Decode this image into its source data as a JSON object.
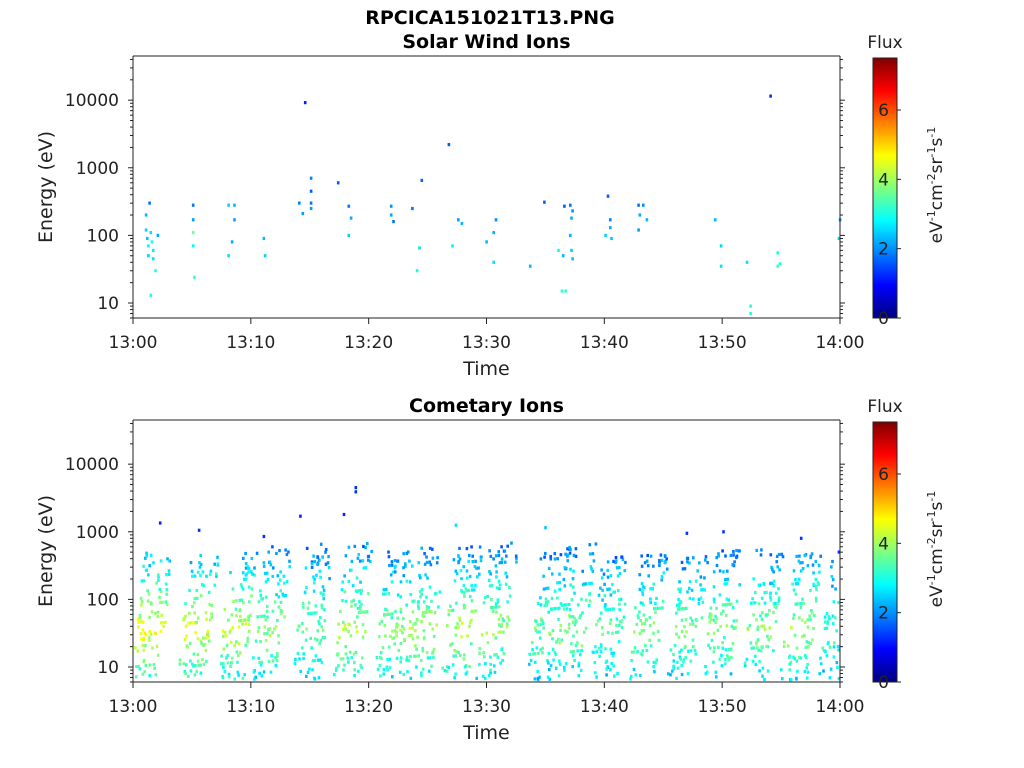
{
  "figure": {
    "title": "RPCICA151021T13.PNG"
  },
  "chart_data": [
    {
      "type": "heatmap",
      "title": "Solar Wind Ions",
      "xlabel": "Time",
      "ylabel": "Energy (eV)",
      "xlim": [
        "13:00",
        "14:00"
      ],
      "x_ticks": [
        "13:00",
        "13:10",
        "13:20",
        "13:30",
        "13:40",
        "13:50",
        "14:00"
      ],
      "ylim": [
        6,
        45000
      ],
      "y_scale": "log",
      "y_ticks": [
        {
          "value": 10,
          "label": "10"
        },
        {
          "value": 100,
          "label": "100"
        },
        {
          "value": 1000,
          "label": "1000"
        },
        {
          "value": 10000,
          "label": "10000"
        }
      ],
      "colorbar": {
        "title": "Flux",
        "units": "eV-1cm-2sr-1s-1",
        "range": [
          0,
          7.5
        ],
        "ticks": [
          0,
          2,
          4,
          6
        ],
        "colormap": "jet"
      },
      "cells": [
        {
          "t": 1.0,
          "e": 200,
          "v": 2.3
        },
        {
          "t": 1.0,
          "e": 120,
          "v": 2.5
        },
        {
          "t": 1.1,
          "e": 90,
          "v": 2.4
        },
        {
          "t": 1.2,
          "e": 70,
          "v": 2.8
        },
        {
          "t": 1.2,
          "e": 50,
          "v": 2.5
        },
        {
          "t": 1.3,
          "e": 300,
          "v": 1.8
        },
        {
          "t": 1.4,
          "e": 110,
          "v": 2.6
        },
        {
          "t": 1.5,
          "e": 80,
          "v": 2.9
        },
        {
          "t": 1.6,
          "e": 60,
          "v": 2.7
        },
        {
          "t": 1.6,
          "e": 45,
          "v": 2.6
        },
        {
          "t": 1.4,
          "e": 13,
          "v": 3.0
        },
        {
          "t": 1.8,
          "e": 30,
          "v": 3.1
        },
        {
          "t": 2.0,
          "e": 100,
          "v": 2.2
        },
        {
          "t": 5.0,
          "e": 280,
          "v": 1.8
        },
        {
          "t": 5.0,
          "e": 170,
          "v": 2.1
        },
        {
          "t": 5.0,
          "e": 110,
          "v": 3.6
        },
        {
          "t": 5.0,
          "e": 70,
          "v": 2.8
        },
        {
          "t": 5.1,
          "e": 24,
          "v": 3.2
        },
        {
          "t": 8.0,
          "e": 280,
          "v": 2.5
        },
        {
          "t": 8.5,
          "e": 280,
          "v": 2.3
        },
        {
          "t": 8.5,
          "e": 170,
          "v": 2.1
        },
        {
          "t": 8.3,
          "e": 80,
          "v": 2.2
        },
        {
          "t": 8.0,
          "e": 50,
          "v": 2.6
        },
        {
          "t": 11.0,
          "e": 90,
          "v": 2.3
        },
        {
          "t": 11.1,
          "e": 50,
          "v": 2.5
        },
        {
          "t": 14.5,
          "e": 9200,
          "v": 1.2
        },
        {
          "t": 14.0,
          "e": 300,
          "v": 1.9
        },
        {
          "t": 14.3,
          "e": 210,
          "v": 2.1
        },
        {
          "t": 15.0,
          "e": 700,
          "v": 1.9
        },
        {
          "t": 15.0,
          "e": 450,
          "v": 1.6
        },
        {
          "t": 15.0,
          "e": 300,
          "v": 1.8
        },
        {
          "t": 15.0,
          "e": 250,
          "v": 2.1
        },
        {
          "t": 17.3,
          "e": 600,
          "v": 1.6
        },
        {
          "t": 18.2,
          "e": 270,
          "v": 1.8
        },
        {
          "t": 18.4,
          "e": 180,
          "v": 2.2
        },
        {
          "t": 18.2,
          "e": 100,
          "v": 2.5
        },
        {
          "t": 21.8,
          "e": 270,
          "v": 2.0
        },
        {
          "t": 21.8,
          "e": 200,
          "v": 2.2
        },
        {
          "t": 22.0,
          "e": 160,
          "v": 1.8
        },
        {
          "t": 23.6,
          "e": 250,
          "v": 1.8
        },
        {
          "t": 24.4,
          "e": 650,
          "v": 1.7
        },
        {
          "t": 24.2,
          "e": 65,
          "v": 2.6
        },
        {
          "t": 24.0,
          "e": 30,
          "v": 2.9
        },
        {
          "t": 26.7,
          "e": 2200,
          "v": 1.6
        },
        {
          "t": 27.5,
          "e": 170,
          "v": 2.1
        },
        {
          "t": 27.8,
          "e": 150,
          "v": 2.3
        },
        {
          "t": 27.0,
          "e": 70,
          "v": 2.7
        },
        {
          "t": 29.9,
          "e": 80,
          "v": 2.3
        },
        {
          "t": 30.7,
          "e": 170,
          "v": 2.0
        },
        {
          "t": 30.5,
          "e": 110,
          "v": 2.3
        },
        {
          "t": 30.5,
          "e": 40,
          "v": 2.6
        },
        {
          "t": 33.6,
          "e": 35,
          "v": 2.3
        },
        {
          "t": 34.8,
          "e": 310,
          "v": 1.6
        },
        {
          "t": 36.0,
          "e": 60,
          "v": 2.9
        },
        {
          "t": 36.5,
          "e": 270,
          "v": 1.6
        },
        {
          "t": 36.4,
          "e": 50,
          "v": 2.3
        },
        {
          "t": 36.3,
          "e": 15,
          "v": 3.2
        },
        {
          "t": 36.6,
          "e": 15,
          "v": 3.2
        },
        {
          "t": 37.0,
          "e": 280,
          "v": 1.8
        },
        {
          "t": 37.2,
          "e": 230,
          "v": 2.0
        },
        {
          "t": 37.1,
          "e": 180,
          "v": 2.2
        },
        {
          "t": 37.0,
          "e": 100,
          "v": 2.3
        },
        {
          "t": 37.1,
          "e": 60,
          "v": 2.5
        },
        {
          "t": 37.2,
          "e": 45,
          "v": 2.4
        },
        {
          "t": 40.2,
          "e": 380,
          "v": 1.6
        },
        {
          "t": 40.4,
          "e": 170,
          "v": 1.9
        },
        {
          "t": 40.4,
          "e": 130,
          "v": 2.2
        },
        {
          "t": 40.0,
          "e": 100,
          "v": 2.5
        },
        {
          "t": 40.5,
          "e": 90,
          "v": 2.4
        },
        {
          "t": 42.8,
          "e": 280,
          "v": 1.8
        },
        {
          "t": 43.2,
          "e": 280,
          "v": 2.0
        },
        {
          "t": 42.9,
          "e": 200,
          "v": 2.2
        },
        {
          "t": 43.5,
          "e": 170,
          "v": 2.3
        },
        {
          "t": 42.8,
          "e": 120,
          "v": 2.1
        },
        {
          "t": 49.3,
          "e": 170,
          "v": 2.3
        },
        {
          "t": 49.8,
          "e": 70,
          "v": 2.5
        },
        {
          "t": 49.8,
          "e": 35,
          "v": 2.6
        },
        {
          "t": 52.0,
          "e": 40,
          "v": 2.6
        },
        {
          "t": 52.3,
          "e": 9,
          "v": 3.0
        },
        {
          "t": 52.3,
          "e": 7,
          "v": 3.0
        },
        {
          "t": 54.0,
          "e": 11500,
          "v": 1.3
        },
        {
          "t": 54.6,
          "e": 55,
          "v": 3.0
        },
        {
          "t": 54.6,
          "e": 35,
          "v": 3.3
        },
        {
          "t": 54.8,
          "e": 38,
          "v": 3.0
        },
        {
          "t": 59.9,
          "e": 170,
          "v": 2.1
        },
        {
          "t": 59.8,
          "e": 90,
          "v": 2.6
        }
      ]
    },
    {
      "type": "heatmap",
      "title": "Cometary Ions",
      "xlabel": "Time",
      "ylabel": "Energy (eV)",
      "xlim": [
        "13:00",
        "14:00"
      ],
      "x_ticks": [
        "13:00",
        "13:10",
        "13:20",
        "13:30",
        "13:40",
        "13:50",
        "14:00"
      ],
      "ylim": [
        6,
        45000
      ],
      "y_scale": "log",
      "y_ticks": [
        {
          "value": 10,
          "label": "10"
        },
        {
          "value": 100,
          "label": "100"
        },
        {
          "value": 1000,
          "label": "1000"
        },
        {
          "value": 10000,
          "label": "10000"
        }
      ],
      "colorbar": {
        "title": "Flux",
        "units": "eV-1cm-2sr-1s-1",
        "range": [
          0,
          7.5
        ],
        "ticks": [
          0,
          2,
          4,
          6
        ],
        "colormap": "jet"
      },
      "bursts": [
        {
          "t": 1.3,
          "e_top": 500,
          "peak": 5.0
        },
        {
          "t": 5.2,
          "e_top": 450,
          "peak": 4.8
        },
        {
          "t": 8.6,
          "e_top": 500,
          "peak": 4.7
        },
        {
          "t": 11.4,
          "e_top": 600,
          "peak": 4.3
        },
        {
          "t": 15.0,
          "e_top": 700,
          "peak": 4.2
        },
        {
          "t": 18.4,
          "e_top": 700,
          "peak": 4.6
        },
        {
          "t": 21.9,
          "e_top": 550,
          "peak": 4.3
        },
        {
          "t": 24.4,
          "e_top": 600,
          "peak": 4.5
        },
        {
          "t": 27.6,
          "e_top": 600,
          "peak": 4.6
        },
        {
          "t": 30.6,
          "e_top": 700,
          "peak": 4.4
        },
        {
          "t": 34.9,
          "e_top": 600,
          "peak": 4.1
        },
        {
          "t": 37.2,
          "e_top": 700,
          "peak": 4.3
        },
        {
          "t": 40.2,
          "e_top": 500,
          "peak": 4.0
        },
        {
          "t": 43.4,
          "e_top": 500,
          "peak": 4.2
        },
        {
          "t": 46.8,
          "e_top": 450,
          "peak": 4.1
        },
        {
          "t": 49.8,
          "e_top": 550,
          "peak": 4.2
        },
        {
          "t": 53.2,
          "e_top": 550,
          "peak": 4.3
        },
        {
          "t": 56.4,
          "e_top": 500,
          "peak": 4.4
        },
        {
          "t": 59.6,
          "e_top": 400,
          "peak": 3.9
        }
      ],
      "cells": [
        {
          "t": 2.2,
          "e": 1350,
          "v": 1.2
        },
        {
          "t": 5.5,
          "e": 1050,
          "v": 1.3
        },
        {
          "t": 11.0,
          "e": 850,
          "v": 1.3
        },
        {
          "t": 14.1,
          "e": 1700,
          "v": 1.2
        },
        {
          "t": 17.8,
          "e": 1800,
          "v": 1.2
        },
        {
          "t": 18.8,
          "e": 4500,
          "v": 1.3
        },
        {
          "t": 18.8,
          "e": 3900,
          "v": 1.3
        },
        {
          "t": 27.3,
          "e": 1250,
          "v": 2.6
        },
        {
          "t": 34.9,
          "e": 1150,
          "v": 2.4
        },
        {
          "t": 46.9,
          "e": 950,
          "v": 1.3
        },
        {
          "t": 50.0,
          "e": 1000,
          "v": 1.3
        },
        {
          "t": 56.6,
          "e": 800,
          "v": 1.3
        },
        {
          "t": 59.8,
          "e": 500,
          "v": 1.4
        }
      ]
    }
  ]
}
